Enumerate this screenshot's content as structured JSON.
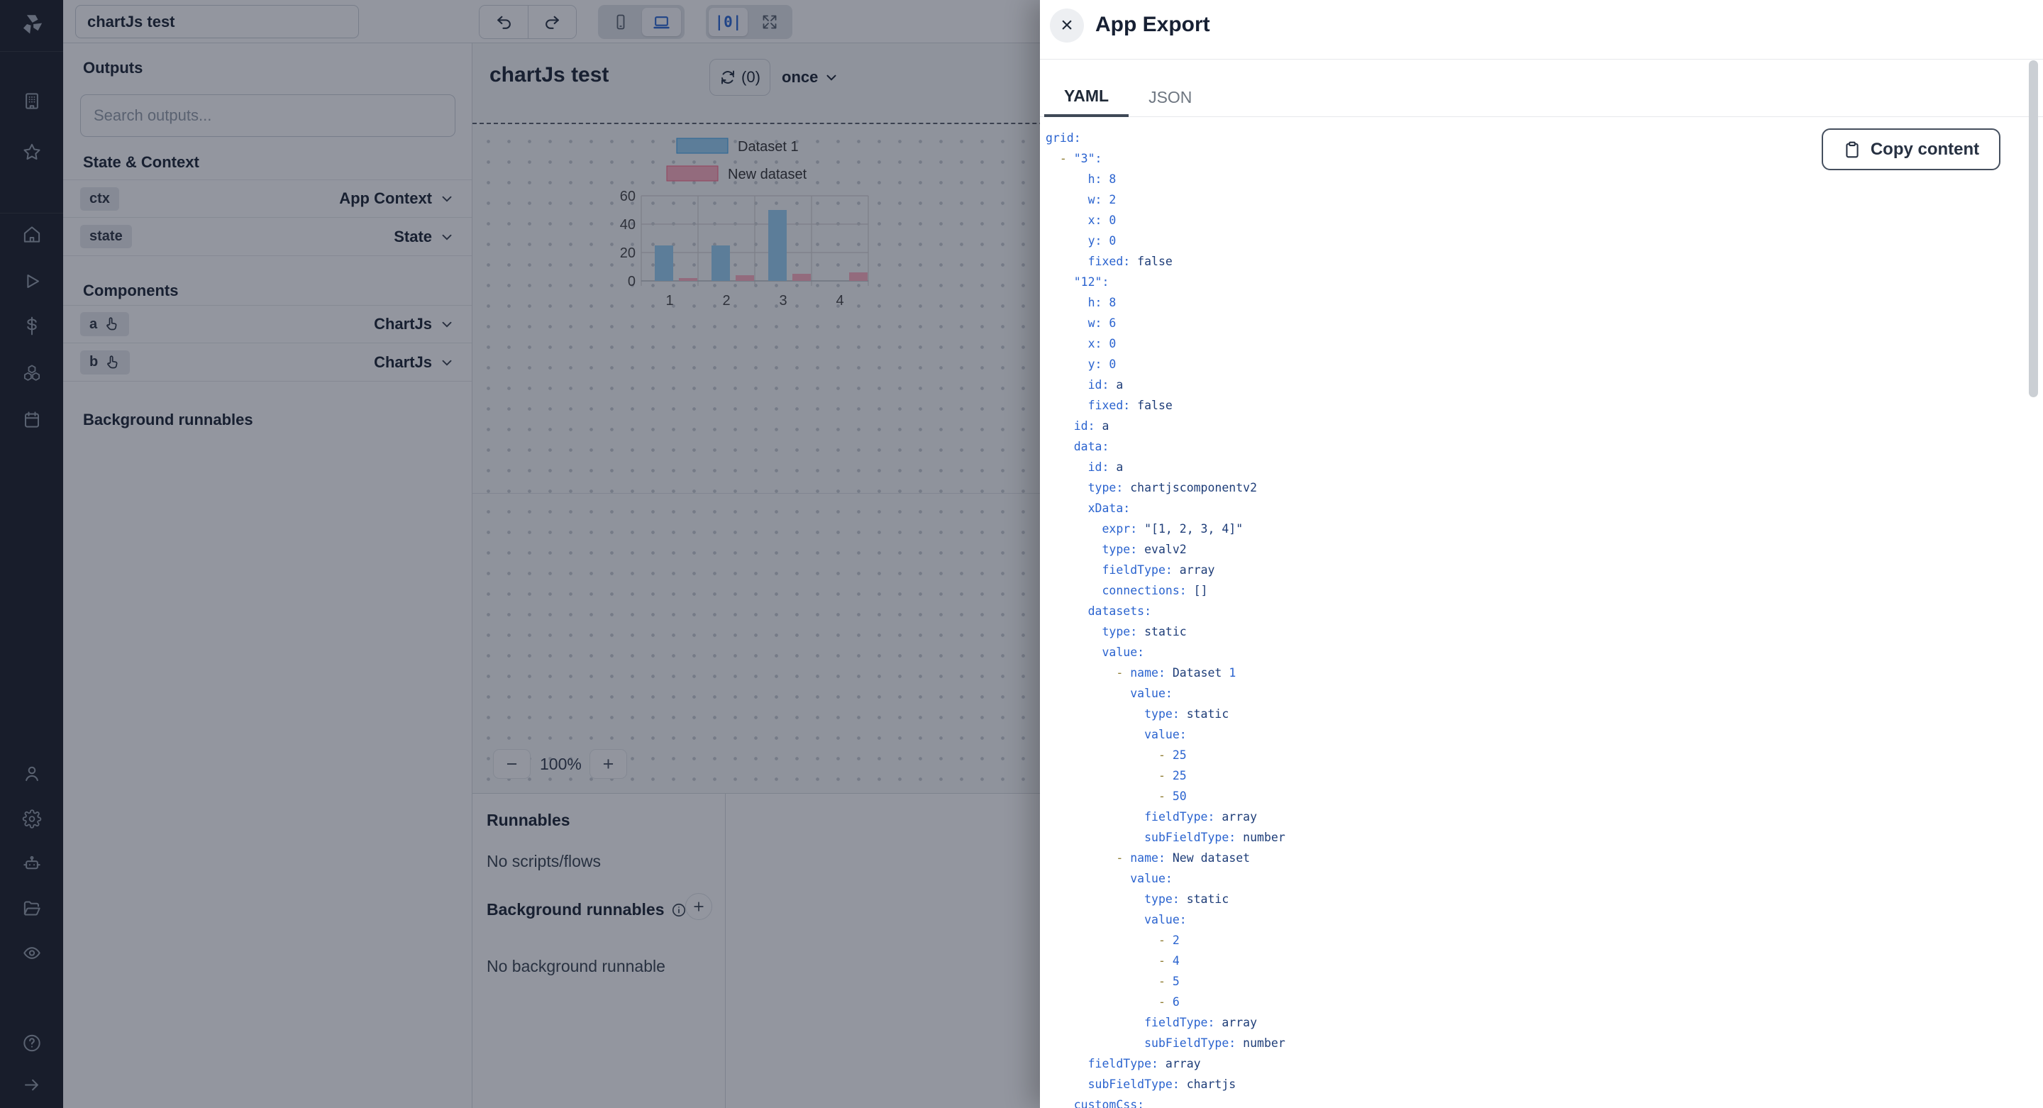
{
  "colors": {
    "accent_blue": "#2e6bd4",
    "yaml_key": "#2a63cf",
    "yaml_string": "#1e3d78",
    "yaml_dash": "#8f7d33",
    "rail_bg": "#1f242c",
    "overlay": "rgba(15,23,42,0.45)"
  },
  "sidebar": {
    "icons": [
      "windmill-logo",
      "workspace-building",
      "favorites-star",
      "home",
      "runs-play",
      "variables-dollar",
      "resources-boxes",
      "schedules-calendar",
      "user",
      "settings-gear",
      "workers-robot",
      "folders",
      "audit-eye",
      "help-circle",
      "collapse-arrow-right"
    ]
  },
  "header": {
    "app_name": "chartJs test",
    "distribute_glyph": "|0|"
  },
  "left_panel": {
    "outputs_title": "Outputs",
    "search_placeholder": "Search outputs...",
    "state_context_title": "State & Context",
    "state_rows": [
      {
        "badge": "ctx",
        "type": "App Context"
      },
      {
        "badge": "state",
        "type": "State"
      }
    ],
    "components_title": "Components",
    "component_rows": [
      {
        "badge": "a",
        "type": "ChartJs"
      },
      {
        "badge": "b",
        "type": "ChartJs"
      }
    ],
    "background_runnables_title": "Background runnables"
  },
  "canvas": {
    "title": "chartJs test",
    "refresh_count": "(0)",
    "refresh_mode": "once",
    "zoom_out": "−",
    "zoom_level": "100%",
    "zoom_in": "+"
  },
  "bottom_panel": {
    "runnables_title": "Runnables",
    "runnables_empty": "No scripts/flows",
    "background_title": "Background runnables",
    "background_empty": "No background runnable"
  },
  "modal": {
    "title": "App Export",
    "close_glyph": "×",
    "tabs": [
      "YAML",
      "JSON"
    ],
    "active_tab": "YAML",
    "copy_button": "Copy content",
    "yaml_lines": [
      "grid:",
      "  - \"3\":",
      "      h: 8",
      "      w: 2",
      "      x: 0",
      "      y: 0",
      "      fixed: false",
      "    \"12\":",
      "      h: 8",
      "      w: 6",
      "      x: 0",
      "      y: 0",
      "      id: a",
      "      fixed: false",
      "    id: a",
      "    data:",
      "      id: a",
      "      type: chartjscomponentv2",
      "      xData:",
      "        expr: \"[1, 2, 3, 4]\"",
      "        type: evalv2",
      "        fieldType: array",
      "        connections: []",
      "      datasets:",
      "        type: static",
      "        value:",
      "          - name: Dataset 1",
      "            value:",
      "              type: static",
      "              value:",
      "                - 25",
      "                - 25",
      "                - 50",
      "              fieldType: array",
      "              subFieldType: number",
      "          - name: New dataset",
      "            value:",
      "              type: static",
      "              value:",
      "                - 2",
      "                - 4",
      "                - 5",
      "                - 6",
      "              fieldType: array",
      "              subFieldType: number",
      "      fieldType: array",
      "      subFieldType: chartjs",
      "    customCss:"
    ]
  },
  "chart_data": {
    "type": "bar",
    "categories": [
      "1",
      "2",
      "3",
      "4"
    ],
    "series": [
      {
        "name": "Dataset 1",
        "values": [
          25,
          25,
          50,
          null
        ],
        "fill": "#9bd1f5",
        "border": "#36a2eb"
      },
      {
        "name": "New dataset",
        "values": [
          2,
          4,
          5,
          6
        ],
        "fill": "#ffb1c2",
        "border": "#ff6384"
      }
    ],
    "ylim": [
      0,
      60
    ],
    "yticks": [
      0,
      20,
      40,
      60
    ],
    "legend_position": "top",
    "grid": true
  }
}
